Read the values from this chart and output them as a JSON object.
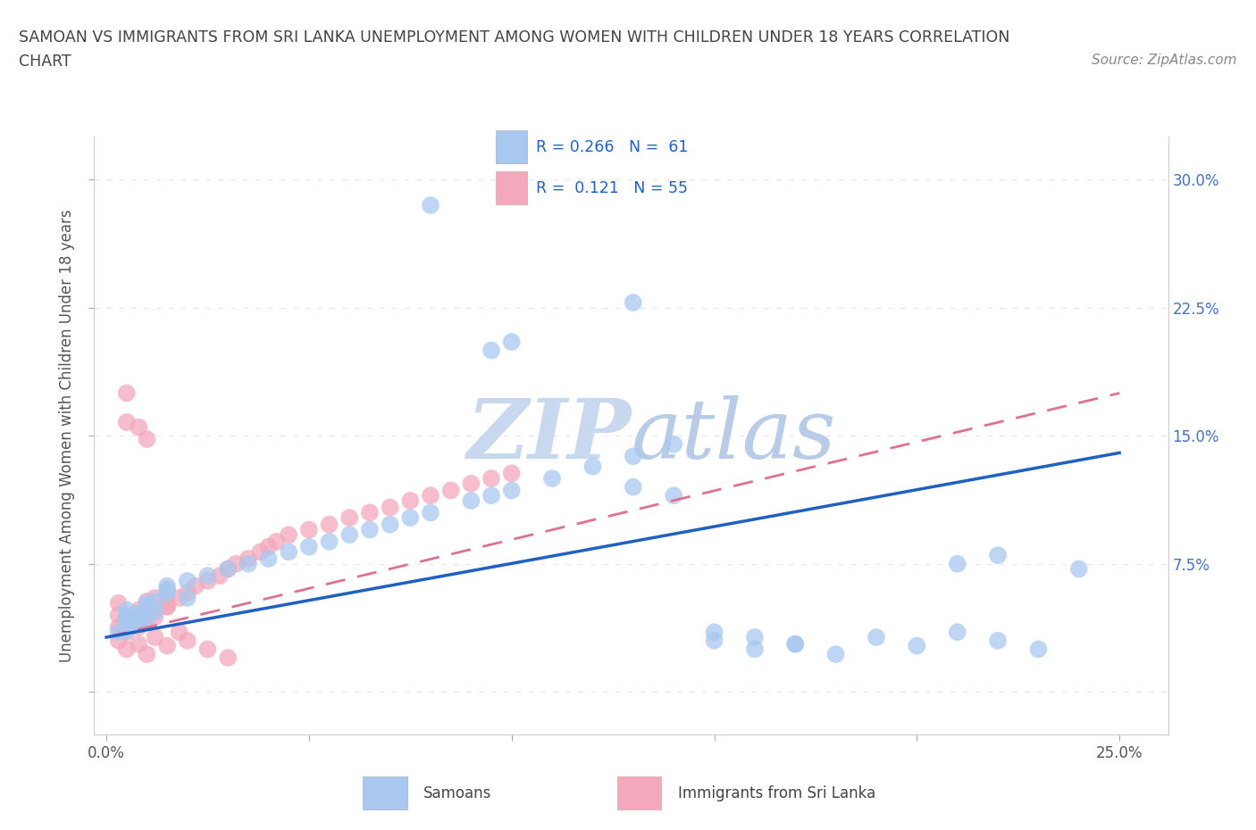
{
  "title_line1": "SAMOAN VS IMMIGRANTS FROM SRI LANKA UNEMPLOYMENT AMONG WOMEN WITH CHILDREN UNDER 18 YEARS CORRELATION",
  "title_line2": "CHART",
  "source_text": "Source: ZipAtlas.com",
  "ylabel": "Unemployment Among Women with Children Under 18 years",
  "x_tick_positions": [
    0.0,
    0.05,
    0.1,
    0.15,
    0.2,
    0.25
  ],
  "x_tick_labels": [
    "0.0%",
    "",
    "",
    "",
    "",
    "25.0%"
  ],
  "y_tick_positions": [
    0.0,
    0.075,
    0.15,
    0.225,
    0.3
  ],
  "y_tick_labels": [
    "",
    "7.5%",
    "15.0%",
    "22.5%",
    "30.0%"
  ],
  "xlim": [
    -0.003,
    0.262
  ],
  "ylim": [
    -0.025,
    0.325
  ],
  "samoan_color": "#a8c8f0",
  "sri_lanka_color": "#f4a8bc",
  "samoan_line_color": "#2060c0",
  "sri_lanka_line_color": "#e07090",
  "background_color": "#ffffff",
  "grid_color": "#e8e8e8",
  "watermark_color": "#dce8f8",
  "samoan_x": [
    0.08,
    0.13,
    0.1,
    0.095,
    0.01,
    0.02,
    0.005,
    0.015,
    0.005,
    0.01,
    0.005,
    0.015,
    0.008,
    0.012,
    0.005,
    0.01,
    0.008,
    0.003,
    0.007,
    0.012,
    0.005,
    0.008,
    0.01,
    0.015,
    0.02,
    0.025,
    0.03,
    0.035,
    0.04,
    0.045,
    0.05,
    0.055,
    0.06,
    0.065,
    0.07,
    0.075,
    0.08,
    0.09,
    0.095,
    0.1,
    0.11,
    0.12,
    0.13,
    0.14,
    0.15,
    0.16,
    0.17,
    0.18,
    0.19,
    0.2,
    0.21,
    0.22,
    0.23,
    0.13,
    0.14,
    0.15,
    0.16,
    0.17,
    0.22,
    0.21,
    0.24
  ],
  "samoan_y": [
    0.285,
    0.228,
    0.205,
    0.2,
    0.05,
    0.055,
    0.045,
    0.06,
    0.048,
    0.052,
    0.042,
    0.058,
    0.046,
    0.053,
    0.038,
    0.043,
    0.041,
    0.035,
    0.04,
    0.047,
    0.036,
    0.044,
    0.049,
    0.062,
    0.065,
    0.068,
    0.072,
    0.075,
    0.078,
    0.082,
    0.085,
    0.088,
    0.092,
    0.095,
    0.098,
    0.102,
    0.105,
    0.112,
    0.115,
    0.118,
    0.125,
    0.132,
    0.138,
    0.145,
    0.03,
    0.025,
    0.028,
    0.022,
    0.032,
    0.027,
    0.035,
    0.03,
    0.025,
    0.12,
    0.115,
    0.035,
    0.032,
    0.028,
    0.08,
    0.075,
    0.072
  ],
  "sri_lanka_x": [
    0.005,
    0.01,
    0.008,
    0.003,
    0.012,
    0.015,
    0.005,
    0.008,
    0.01,
    0.003,
    0.005,
    0.008,
    0.01,
    0.012,
    0.015,
    0.003,
    0.007,
    0.01,
    0.005,
    0.008,
    0.012,
    0.015,
    0.018,
    0.02,
    0.022,
    0.025,
    0.028,
    0.03,
    0.032,
    0.035,
    0.038,
    0.04,
    0.042,
    0.045,
    0.05,
    0.055,
    0.06,
    0.065,
    0.07,
    0.075,
    0.08,
    0.085,
    0.09,
    0.095,
    0.1,
    0.003,
    0.005,
    0.008,
    0.01,
    0.012,
    0.015,
    0.018,
    0.02,
    0.025,
    0.03
  ],
  "sri_lanka_y": [
    0.175,
    0.148,
    0.155,
    0.052,
    0.055,
    0.05,
    0.158,
    0.048,
    0.053,
    0.045,
    0.042,
    0.04,
    0.046,
    0.044,
    0.05,
    0.038,
    0.041,
    0.043,
    0.035,
    0.038,
    0.048,
    0.052,
    0.055,
    0.058,
    0.062,
    0.065,
    0.068,
    0.072,
    0.075,
    0.078,
    0.082,
    0.085,
    0.088,
    0.092,
    0.095,
    0.098,
    0.102,
    0.105,
    0.108,
    0.112,
    0.115,
    0.118,
    0.122,
    0.125,
    0.128,
    0.03,
    0.025,
    0.028,
    0.022,
    0.032,
    0.027,
    0.035,
    0.03,
    0.025,
    0.02
  ],
  "samoan_line_x": [
    0.0,
    0.25
  ],
  "samoan_line_y": [
    0.032,
    0.14
  ],
  "sri_lanka_line_x": [
    0.0,
    0.25
  ],
  "sri_lanka_line_y": [
    0.032,
    0.175
  ]
}
